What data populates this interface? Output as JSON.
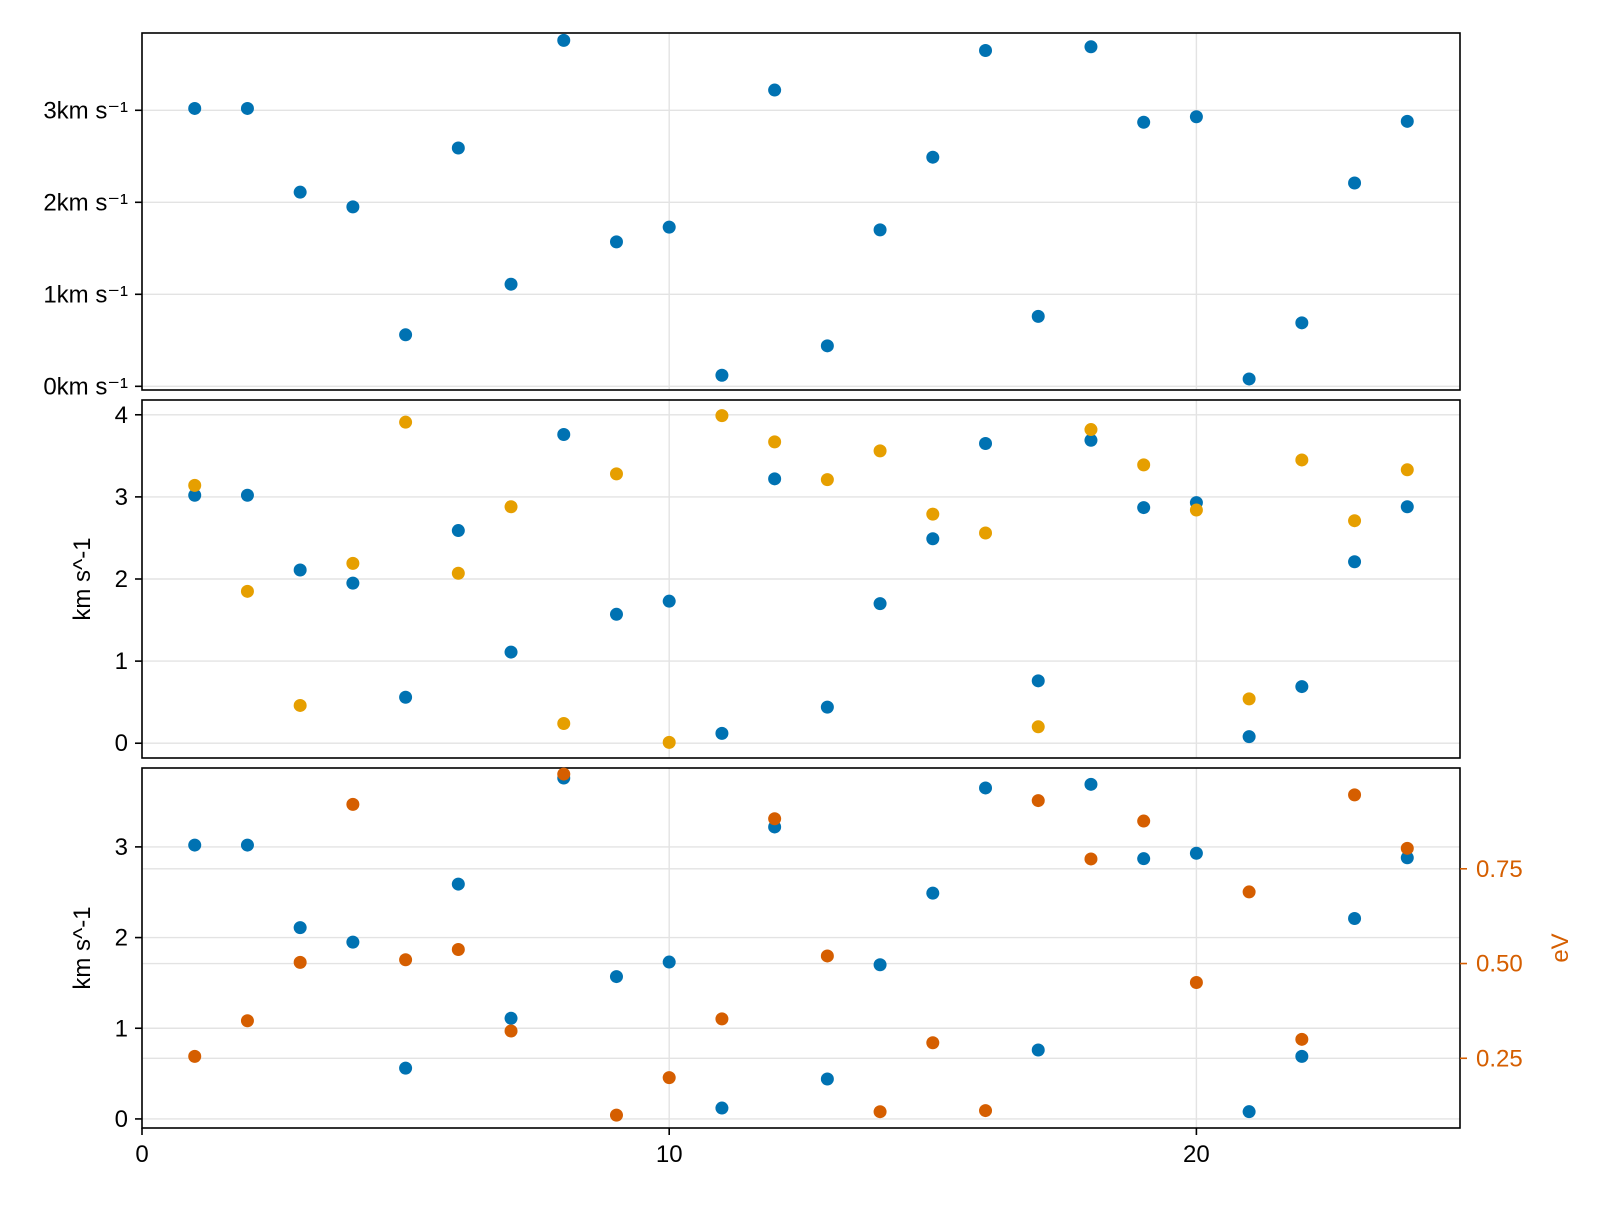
{
  "chart_data": [
    {
      "type": "scatter",
      "panel": "top",
      "xlim": [
        0,
        25
      ],
      "ylim": [
        -0.04,
        3.84
      ],
      "grid": true,
      "ylabel": "",
      "ytick_labels": [
        "0km s⁻¹",
        "1km s⁻¹",
        "2km s⁻¹",
        "3km s⁻¹"
      ],
      "ytick_values": [
        0,
        1,
        2,
        3
      ],
      "series": [
        {
          "color": "#0072b2",
          "x": [
            1,
            2,
            3,
            4,
            5,
            6,
            7,
            8,
            9,
            10,
            11,
            12,
            13,
            14,
            15,
            16,
            17,
            18,
            19,
            20,
            21,
            22,
            23,
            24
          ],
          "y": [
            3.02,
            3.02,
            2.11,
            1.95,
            0.56,
            2.59,
            1.11,
            3.76,
            1.57,
            1.73,
            0.12,
            3.22,
            0.44,
            1.7,
            2.49,
            3.65,
            0.76,
            3.69,
            2.87,
            2.93,
            0.08,
            0.69,
            2.21,
            2.88
          ]
        }
      ]
    },
    {
      "type": "scatter",
      "panel": "middle",
      "xlim": [
        0,
        25
      ],
      "ylim": [
        -0.18,
        4.18
      ],
      "grid": true,
      "ylabel": "km s^-1",
      "ytick_values": [
        0,
        1,
        2,
        3,
        4
      ],
      "ytick_labels": [
        "0",
        "1",
        "2",
        "3",
        "4"
      ],
      "series": [
        {
          "color": "#0072b2",
          "x": [
            1,
            2,
            3,
            4,
            5,
            6,
            7,
            8,
            9,
            10,
            11,
            12,
            13,
            14,
            15,
            16,
            17,
            18,
            19,
            20,
            21,
            22,
            23,
            24
          ],
          "y": [
            3.02,
            3.02,
            2.11,
            1.95,
            0.56,
            2.59,
            1.11,
            3.76,
            1.57,
            1.73,
            0.12,
            3.22,
            0.44,
            1.7,
            2.49,
            3.65,
            0.76,
            3.69,
            2.87,
            2.93,
            0.08,
            0.69,
            2.21,
            2.88
          ]
        },
        {
          "color": "#e69f00",
          "x": [
            1,
            2,
            3,
            4,
            5,
            6,
            7,
            8,
            9,
            10,
            11,
            12,
            13,
            14,
            15,
            16,
            17,
            18,
            19,
            20,
            21,
            22,
            23,
            24
          ],
          "y": [
            3.14,
            1.85,
            0.46,
            2.19,
            3.91,
            2.07,
            2.88,
            0.24,
            3.28,
            0.01,
            3.99,
            3.67,
            3.21,
            3.56,
            2.79,
            2.56,
            0.2,
            3.82,
            3.39,
            2.84,
            0.54,
            3.45,
            2.71,
            3.33
          ]
        }
      ]
    },
    {
      "type": "scatter",
      "panel": "bottom",
      "xlim": [
        0,
        25
      ],
      "xtick_values": [
        0,
        10,
        20
      ],
      "xtick_labels": [
        "0",
        "10",
        "20"
      ],
      "ylim": [
        -0.1,
        3.87
      ],
      "grid": true,
      "ylabel": "km s^-1",
      "ytick_values": [
        0,
        1,
        2,
        3
      ],
      "ytick_labels": [
        "0",
        "1",
        "2",
        "3"
      ],
      "y2label": "eV",
      "y2lim": [
        0.066,
        1.016
      ],
      "y2tick_values": [
        0.25,
        0.5,
        0.75
      ],
      "y2tick_labels": [
        "0.25",
        "0.50",
        "0.75"
      ],
      "y2color": "#d55e00",
      "series": [
        {
          "color": "#0072b2",
          "axis": "left",
          "x": [
            1,
            2,
            3,
            4,
            5,
            6,
            7,
            8,
            9,
            10,
            11,
            12,
            13,
            14,
            15,
            16,
            17,
            18,
            19,
            20,
            21,
            22,
            23,
            24
          ],
          "y": [
            3.02,
            3.02,
            2.11,
            1.95,
            0.56,
            2.59,
            1.11,
            3.76,
            1.57,
            1.73,
            0.12,
            3.22,
            0.44,
            1.7,
            2.49,
            3.65,
            0.76,
            3.69,
            2.87,
            2.93,
            0.08,
            0.69,
            2.21,
            2.88
          ]
        },
        {
          "color": "#d55e00",
          "axis": "right",
          "x": [
            1,
            2,
            3,
            4,
            5,
            6,
            7,
            8,
            9,
            10,
            11,
            12,
            13,
            14,
            15,
            16,
            17,
            18,
            19,
            20,
            21,
            22,
            23,
            24
          ],
          "y": [
            0.255,
            0.349,
            0.503,
            0.92,
            0.51,
            0.537,
            0.322,
            1.0,
            0.1,
            0.199,
            0.354,
            0.882,
            0.52,
            0.109,
            0.291,
            0.112,
            0.93,
            0.776,
            0.876,
            0.45,
            0.689,
            0.3,
            0.945,
            0.804
          ]
        }
      ]
    }
  ]
}
